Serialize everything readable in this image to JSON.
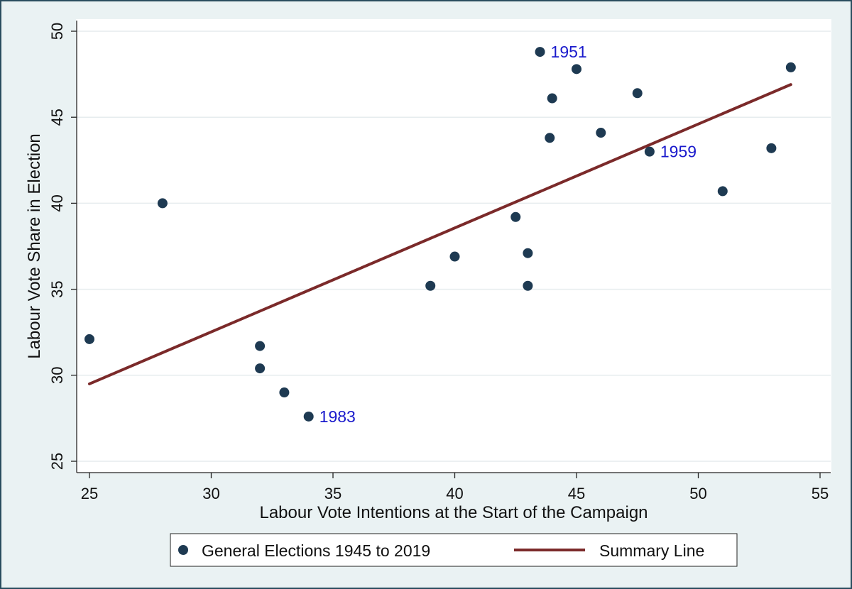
{
  "chart_data": {
    "type": "scatter",
    "xlabel": "Labour Vote Intentions at the Start of the Campaign",
    "ylabel": "Labour Vote Share in Election",
    "xlim": [
      24.5,
      55.5
    ],
    "ylim": [
      24.5,
      50.5
    ],
    "xticks": [
      25,
      30,
      35,
      40,
      45,
      50,
      55
    ],
    "yticks": [
      25,
      30,
      35,
      40,
      45,
      50
    ],
    "grid": true,
    "series": [
      {
        "name": "General Elections 1945 to 2019",
        "type": "scatter",
        "color": "#1e3a52",
        "points": [
          {
            "x": 25.0,
            "y": 32.1
          },
          {
            "x": 28.0,
            "y": 40.0
          },
          {
            "x": 32.0,
            "y": 31.7
          },
          {
            "x": 32.0,
            "y": 30.4
          },
          {
            "x": 33.0,
            "y": 29.0
          },
          {
            "x": 34.0,
            "y": 27.6,
            "label": "1983"
          },
          {
            "x": 39.0,
            "y": 35.2
          },
          {
            "x": 40.0,
            "y": 36.9
          },
          {
            "x": 42.5,
            "y": 39.2
          },
          {
            "x": 43.0,
            "y": 37.1
          },
          {
            "x": 43.0,
            "y": 35.2
          },
          {
            "x": 43.5,
            "y": 48.8,
            "label": "1951"
          },
          {
            "x": 43.9,
            "y": 43.8
          },
          {
            "x": 44.0,
            "y": 46.1
          },
          {
            "x": 45.0,
            "y": 47.8
          },
          {
            "x": 46.0,
            "y": 44.1
          },
          {
            "x": 47.5,
            "y": 46.4
          },
          {
            "x": 48.0,
            "y": 43.0,
            "label": "1959"
          },
          {
            "x": 51.0,
            "y": 40.7
          },
          {
            "x": 53.0,
            "y": 43.2
          },
          {
            "x": 53.8,
            "y": 47.9
          }
        ]
      },
      {
        "name": "Summary Line",
        "type": "line",
        "color": "#7b2a2a",
        "points": [
          {
            "x": 25.0,
            "y": 29.5
          },
          {
            "x": 53.8,
            "y": 46.9
          }
        ]
      }
    ],
    "annotation_color": "#1a1acc",
    "legend": {
      "position": "bottom",
      "items": [
        {
          "label": "General Elections 1945 to 2019",
          "marker": "dot"
        },
        {
          "label": "Summary Line",
          "marker": "line"
        }
      ]
    }
  }
}
